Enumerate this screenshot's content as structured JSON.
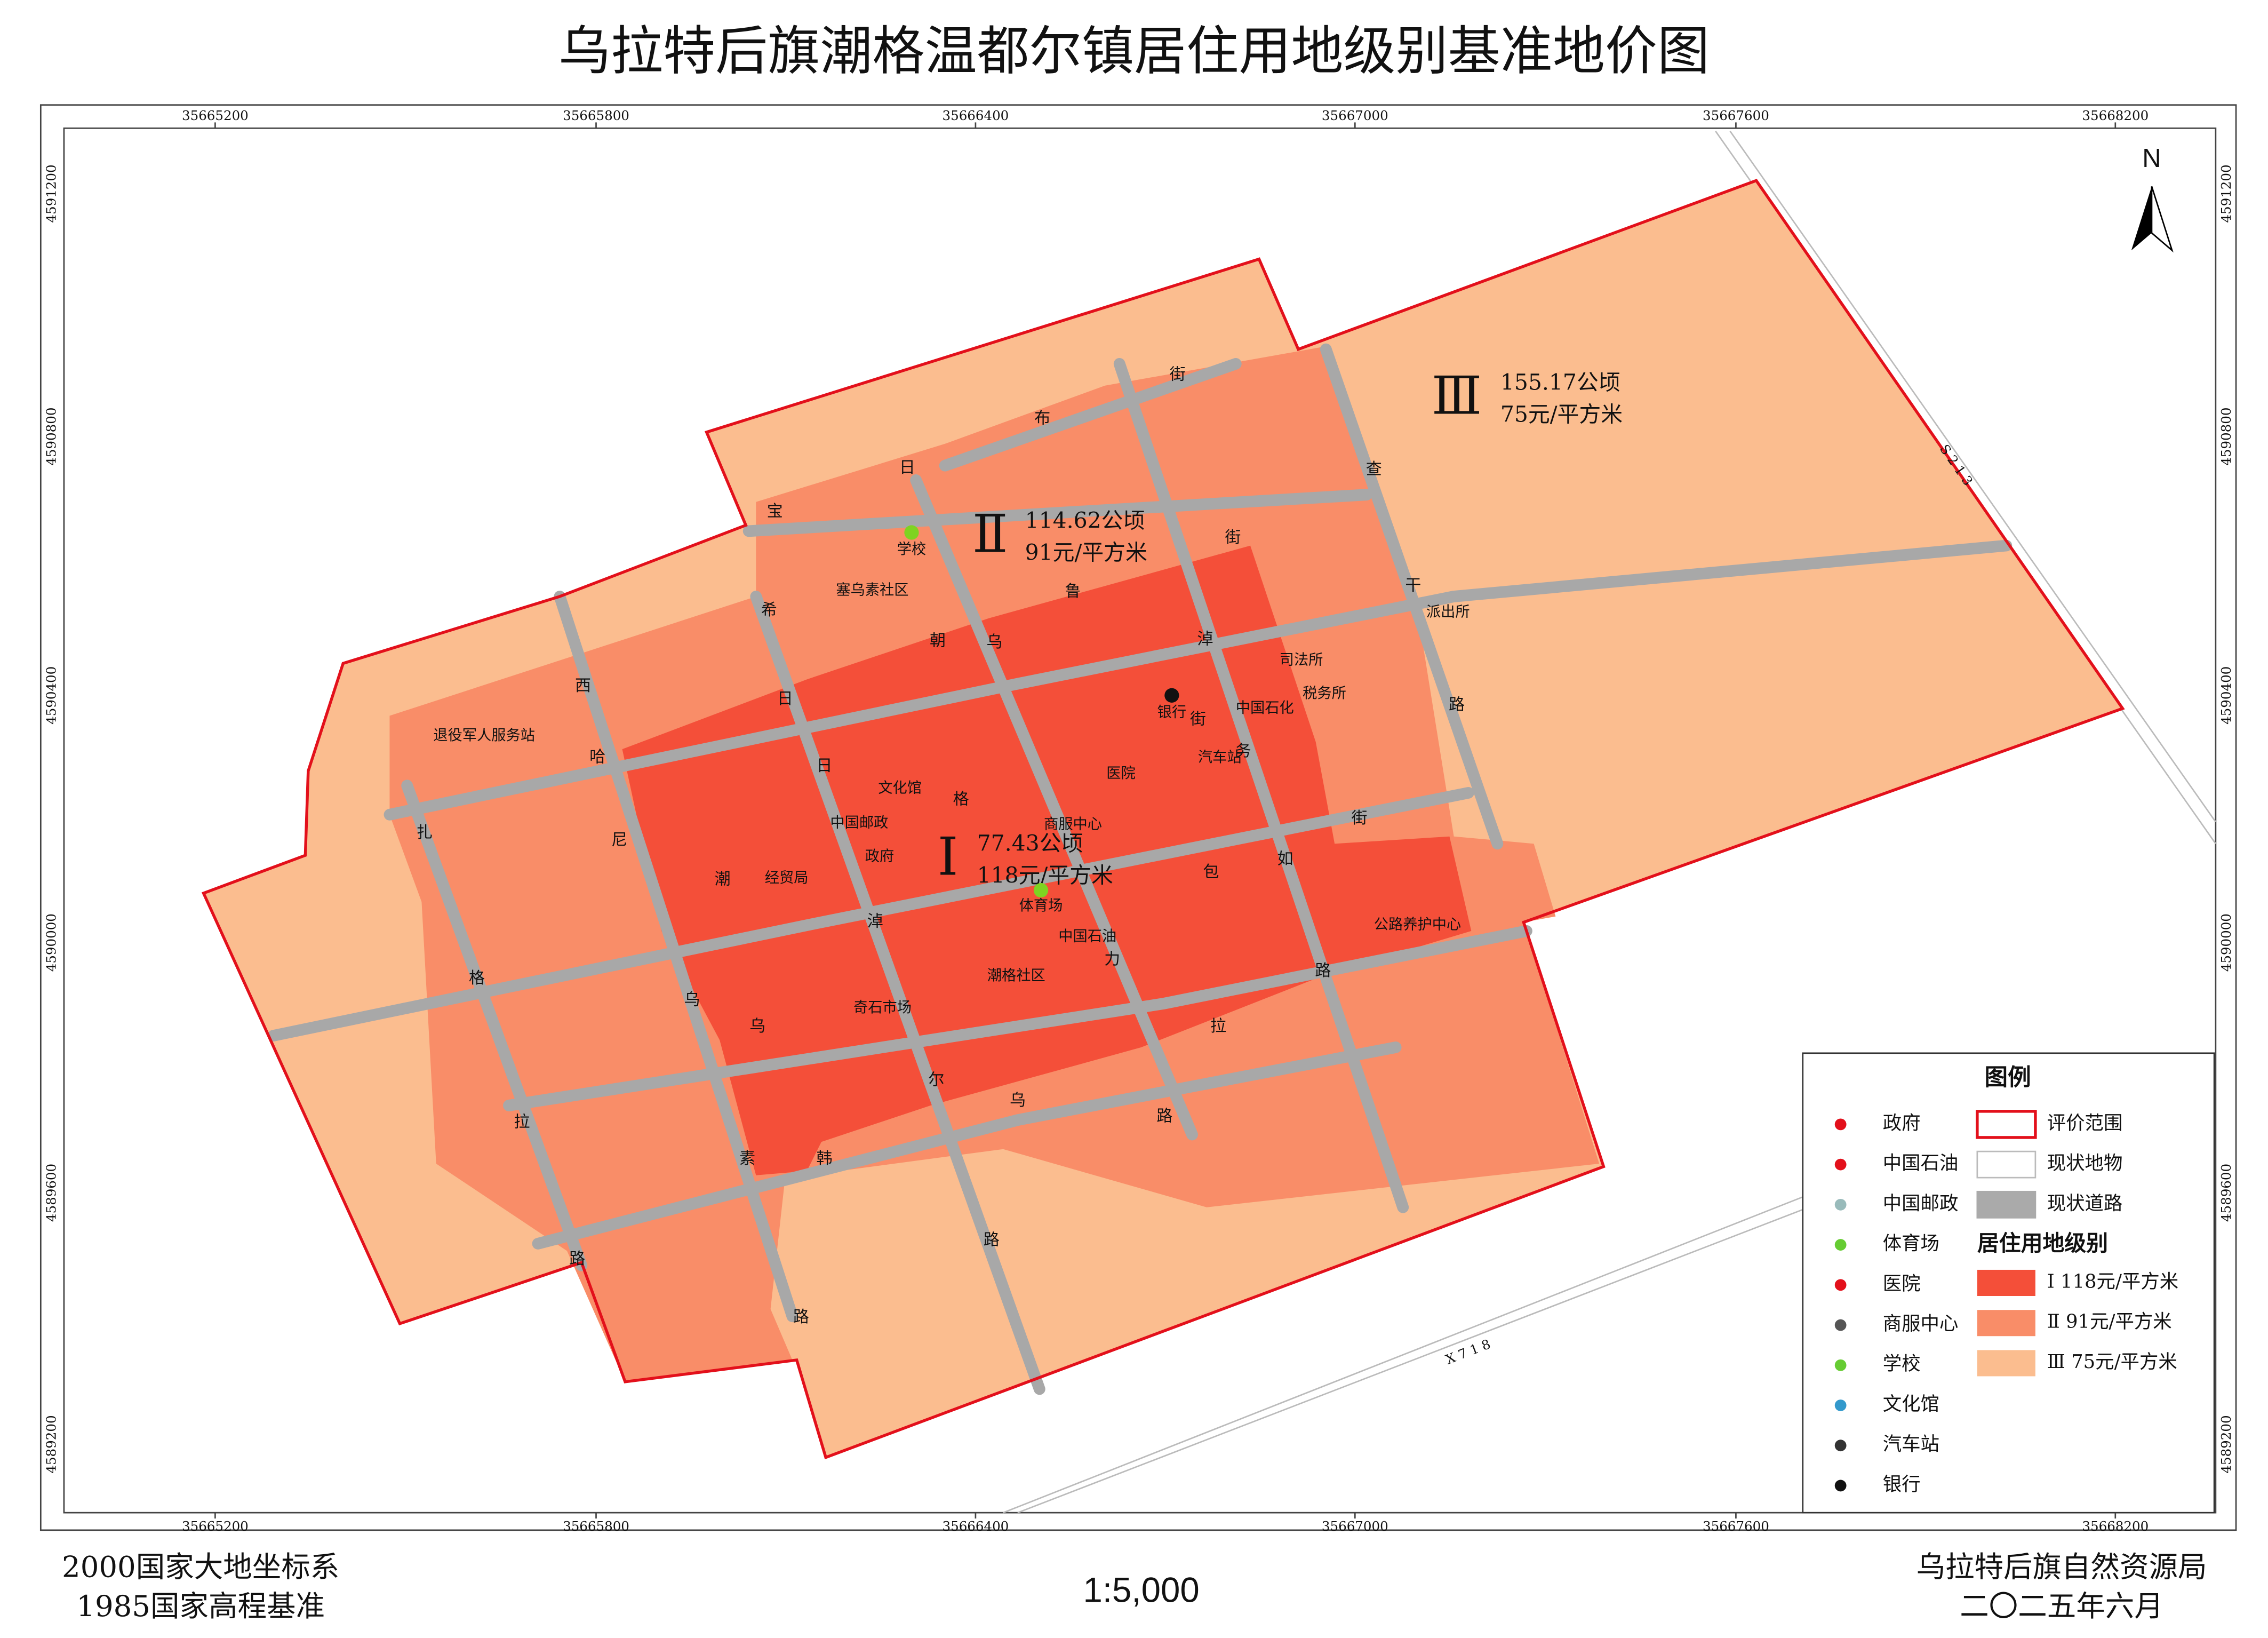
{
  "title": "乌拉特后旗潮格温都尔镇居住用地级别基准地价图",
  "frame": {
    "x_ticks": [
      35665200,
      35665800,
      35666400,
      35667000,
      35667600,
      35668200
    ],
    "y_ticks": [
      4591200,
      4590800,
      4590400,
      4590000,
      4589600,
      4589200
    ]
  },
  "north": "N",
  "zones": [
    {
      "numeral": "Ⅲ",
      "area": "155.17公顷",
      "price": "75元/平方米"
    },
    {
      "numeral": "Ⅱ",
      "area": "114.62公顷",
      "price": "91元/平方米"
    },
    {
      "numeral": "Ⅰ",
      "area": "77.43公顷",
      "price": "118元/平方米"
    }
  ],
  "places": [
    "学校",
    "塞乌素社区",
    "退役军人服务站",
    "文化馆",
    "中国邮政",
    "政府",
    "经贸局",
    "奇石市场",
    "体育场",
    "中国石油",
    "潮格社区",
    "商服中心",
    "医院",
    "银行",
    "中国石化",
    "汽车站",
    "司法所",
    "税务所",
    "派出所",
    "公路养护中心"
  ],
  "streets": [
    "宝",
    "日",
    "布",
    "街",
    "查",
    "干",
    "路",
    "街",
    "路",
    "拉",
    "路",
    "路",
    "路",
    "韩",
    "素",
    "拉",
    "路",
    "格",
    "扎",
    "西",
    "哈",
    "尼",
    "潮",
    "乌",
    "乌",
    "尔",
    "乌",
    "希",
    "日",
    "日",
    "朝",
    "乌",
    "鲁",
    "街",
    "格",
    "淖",
    "包",
    "如",
    "力",
    "淖",
    "街",
    "务"
  ],
  "road_codes": [
    "X 7 1 8",
    "S 2 1 3"
  ],
  "legend": {
    "title": "图例",
    "symbols": [
      "政府",
      "中国石油",
      "中国邮政",
      "体育场",
      "医院",
      "商服中心",
      "学校",
      "文化馆",
      "汽车站",
      "银行"
    ],
    "layers": [
      "评价范围",
      "现状地物",
      "现状道路"
    ],
    "class_title": "居住用地级别",
    "classes": [
      "Ⅰ 118元/平方米",
      "Ⅱ 91元/平方米",
      "Ⅲ 75元/平方米"
    ]
  },
  "footer": {
    "datum": "2000国家大地坐标系",
    "height": "1985国家高程基准",
    "scale": "1:5,000",
    "agency": "乌拉特后旗自然资源局",
    "date": "二〇二五年六月"
  }
}
